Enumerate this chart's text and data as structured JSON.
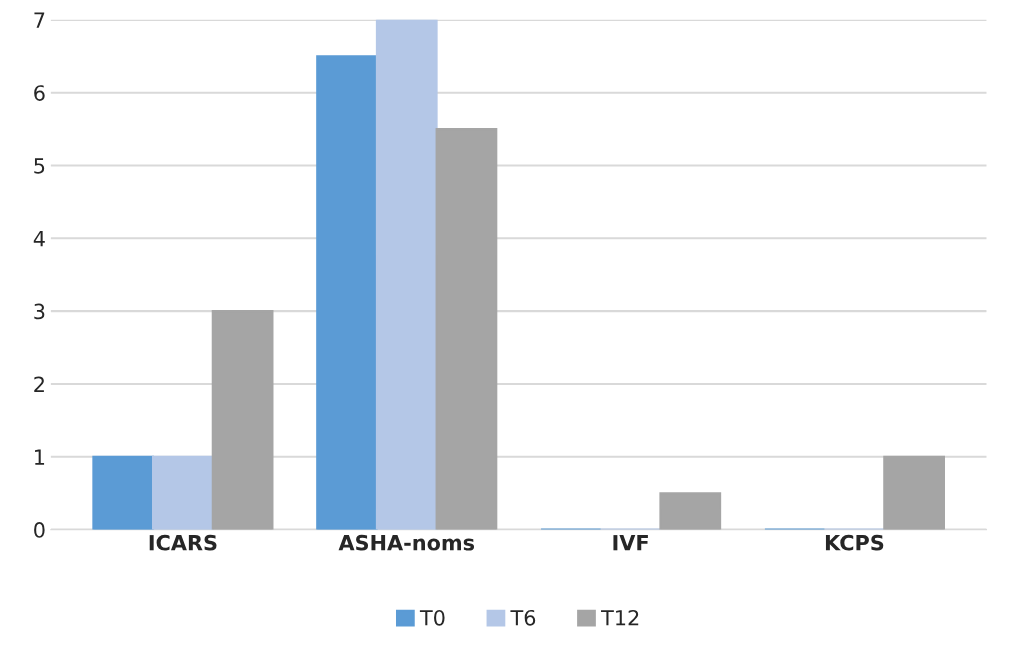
{
  "chart_data": {
    "type": "bar",
    "categories": [
      "ICARS",
      "ASHA-noms",
      "IVF",
      "KCPS"
    ],
    "series": [
      {
        "name": "T0",
        "color": "#5b9bd5",
        "values": [
          1,
          6.5,
          0,
          0
        ]
      },
      {
        "name": "T6",
        "color": "#b4c7e7",
        "values": [
          1,
          7,
          0,
          0
        ]
      },
      {
        "name": "T12",
        "color": "#a5a5a5",
        "values": [
          3,
          5.5,
          0.5,
          1
        ]
      }
    ],
    "ylim": [
      0,
      7
    ],
    "yticks": [
      0,
      1,
      2,
      3,
      4,
      5,
      6,
      7
    ],
    "grid": "y",
    "legend": "bottom"
  }
}
